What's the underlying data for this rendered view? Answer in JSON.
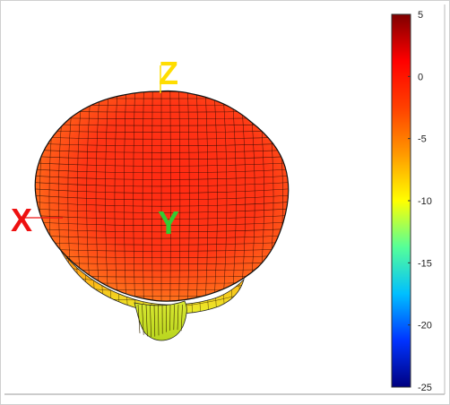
{
  "chart_data": {
    "type": "3d-surface-radiation-pattern",
    "axis_labels": {
      "x": "X",
      "y": "Y",
      "z": "Z"
    },
    "axis_colors": {
      "x": "#ee1111",
      "y": "#33cc33",
      "z": "#ffdd00"
    },
    "colorbar": {
      "min": -25,
      "max": 5,
      "ticks": [
        5,
        0,
        -5,
        -10,
        -15,
        -20,
        -25
      ],
      "tick_labels": [
        "5",
        "0",
        "-5",
        "-10",
        "-15",
        "-20",
        "-25"
      ],
      "colormap": "jet"
    },
    "surface": {
      "dominant_value": 0,
      "low_region_value": -8
    },
    "grid": true
  }
}
